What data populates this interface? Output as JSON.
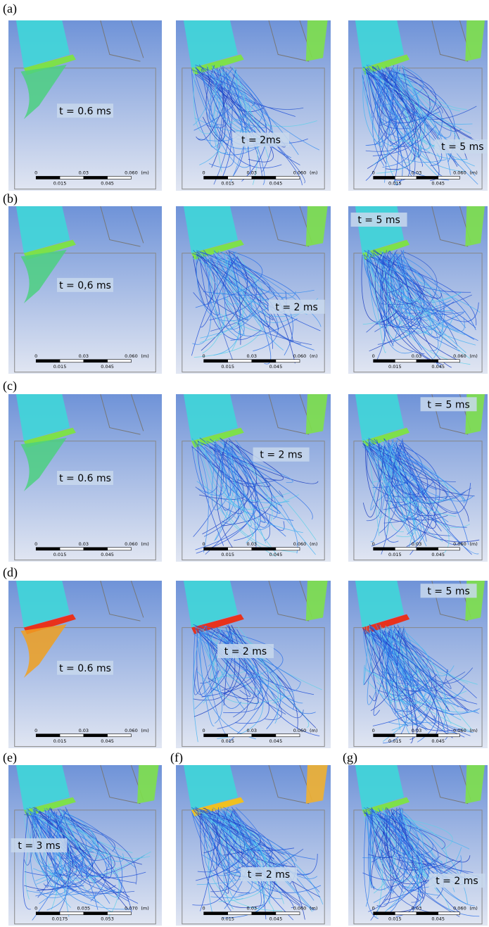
{
  "panels": [
    {
      "label": "(a)",
      "images": [
        {
          "time": "t = 0.6 ms",
          "scale": [
            "0",
            "0.03",
            "0.060",
            "(m)",
            "0.015",
            "0.045"
          ]
        },
        {
          "time": "t = 2ms",
          "scale": [
            "0",
            "0.03",
            "0.060",
            "(m)",
            "0.015",
            "0.045"
          ]
        },
        {
          "time": "t = 5 ms",
          "scale": [
            "0",
            "0.03",
            "0.060",
            "(m)",
            "0.015",
            "0.045"
          ]
        }
      ]
    },
    {
      "label": "(b)",
      "images": [
        {
          "time": "t = 0,6 ms",
          "scale": [
            "0",
            "0.03",
            "0.060",
            "(m)",
            "0.015",
            "0.045"
          ]
        },
        {
          "time": "t = 2 ms",
          "scale": [
            "0",
            "0.03",
            "0.060",
            "(m)",
            "0.015",
            "0.045"
          ]
        },
        {
          "time": "t = 5 ms",
          "scale": [
            "0",
            "0.03",
            "0.060",
            "(m)",
            "0.015",
            "0.045"
          ]
        }
      ]
    },
    {
      "label": "(c)",
      "images": [
        {
          "time": "t = 0.6 ms",
          "scale": [
            "0",
            "0.03",
            "0.060",
            "(m)",
            "0.015",
            "0.045"
          ]
        },
        {
          "time": "t = 2 ms",
          "scale": [
            "0",
            "0.03",
            "0.060",
            "(m)",
            "0.015",
            "0.045"
          ]
        },
        {
          "time": "t = 5 ms",
          "scale": [
            "0",
            "0.03",
            "0.060",
            "(m)",
            "0.015",
            "0.045"
          ]
        }
      ]
    },
    {
      "label": "(d)",
      "images": [
        {
          "time": "t = 0.6 ms",
          "scale": [
            "0",
            "0.03",
            "0.060",
            "(m)",
            "0.015",
            "0.045"
          ]
        },
        {
          "time": "t = 2 ms",
          "scale": [
            "0",
            "0.03",
            "0.060",
            "(m)",
            "0.015",
            "0.045"
          ]
        },
        {
          "time": "t = 5 ms",
          "scale": [
            "0",
            "0.03",
            "0.060",
            "(m)",
            "0.015",
            "0.045"
          ]
        }
      ]
    },
    {
      "label": "(e)",
      "images": [
        {
          "time": "t = 3 ms",
          "scale": [
            "0",
            "0.035",
            "0.070",
            "(m)",
            "0.0175",
            "0.053"
          ]
        }
      ]
    },
    {
      "label": "(f)",
      "images": [
        {
          "time": "t = 2 ms",
          "scale": [
            "0",
            "0.03",
            "0.060",
            "(m)",
            "0.015",
            "0.045"
          ]
        }
      ]
    },
    {
      "label": "(g)",
      "images": [
        {
          "time": "t = 2 ms",
          "scale": [
            "0",
            "0.03",
            "0.060",
            "(m)",
            "0.015",
            "0.045"
          ]
        }
      ]
    }
  ]
}
